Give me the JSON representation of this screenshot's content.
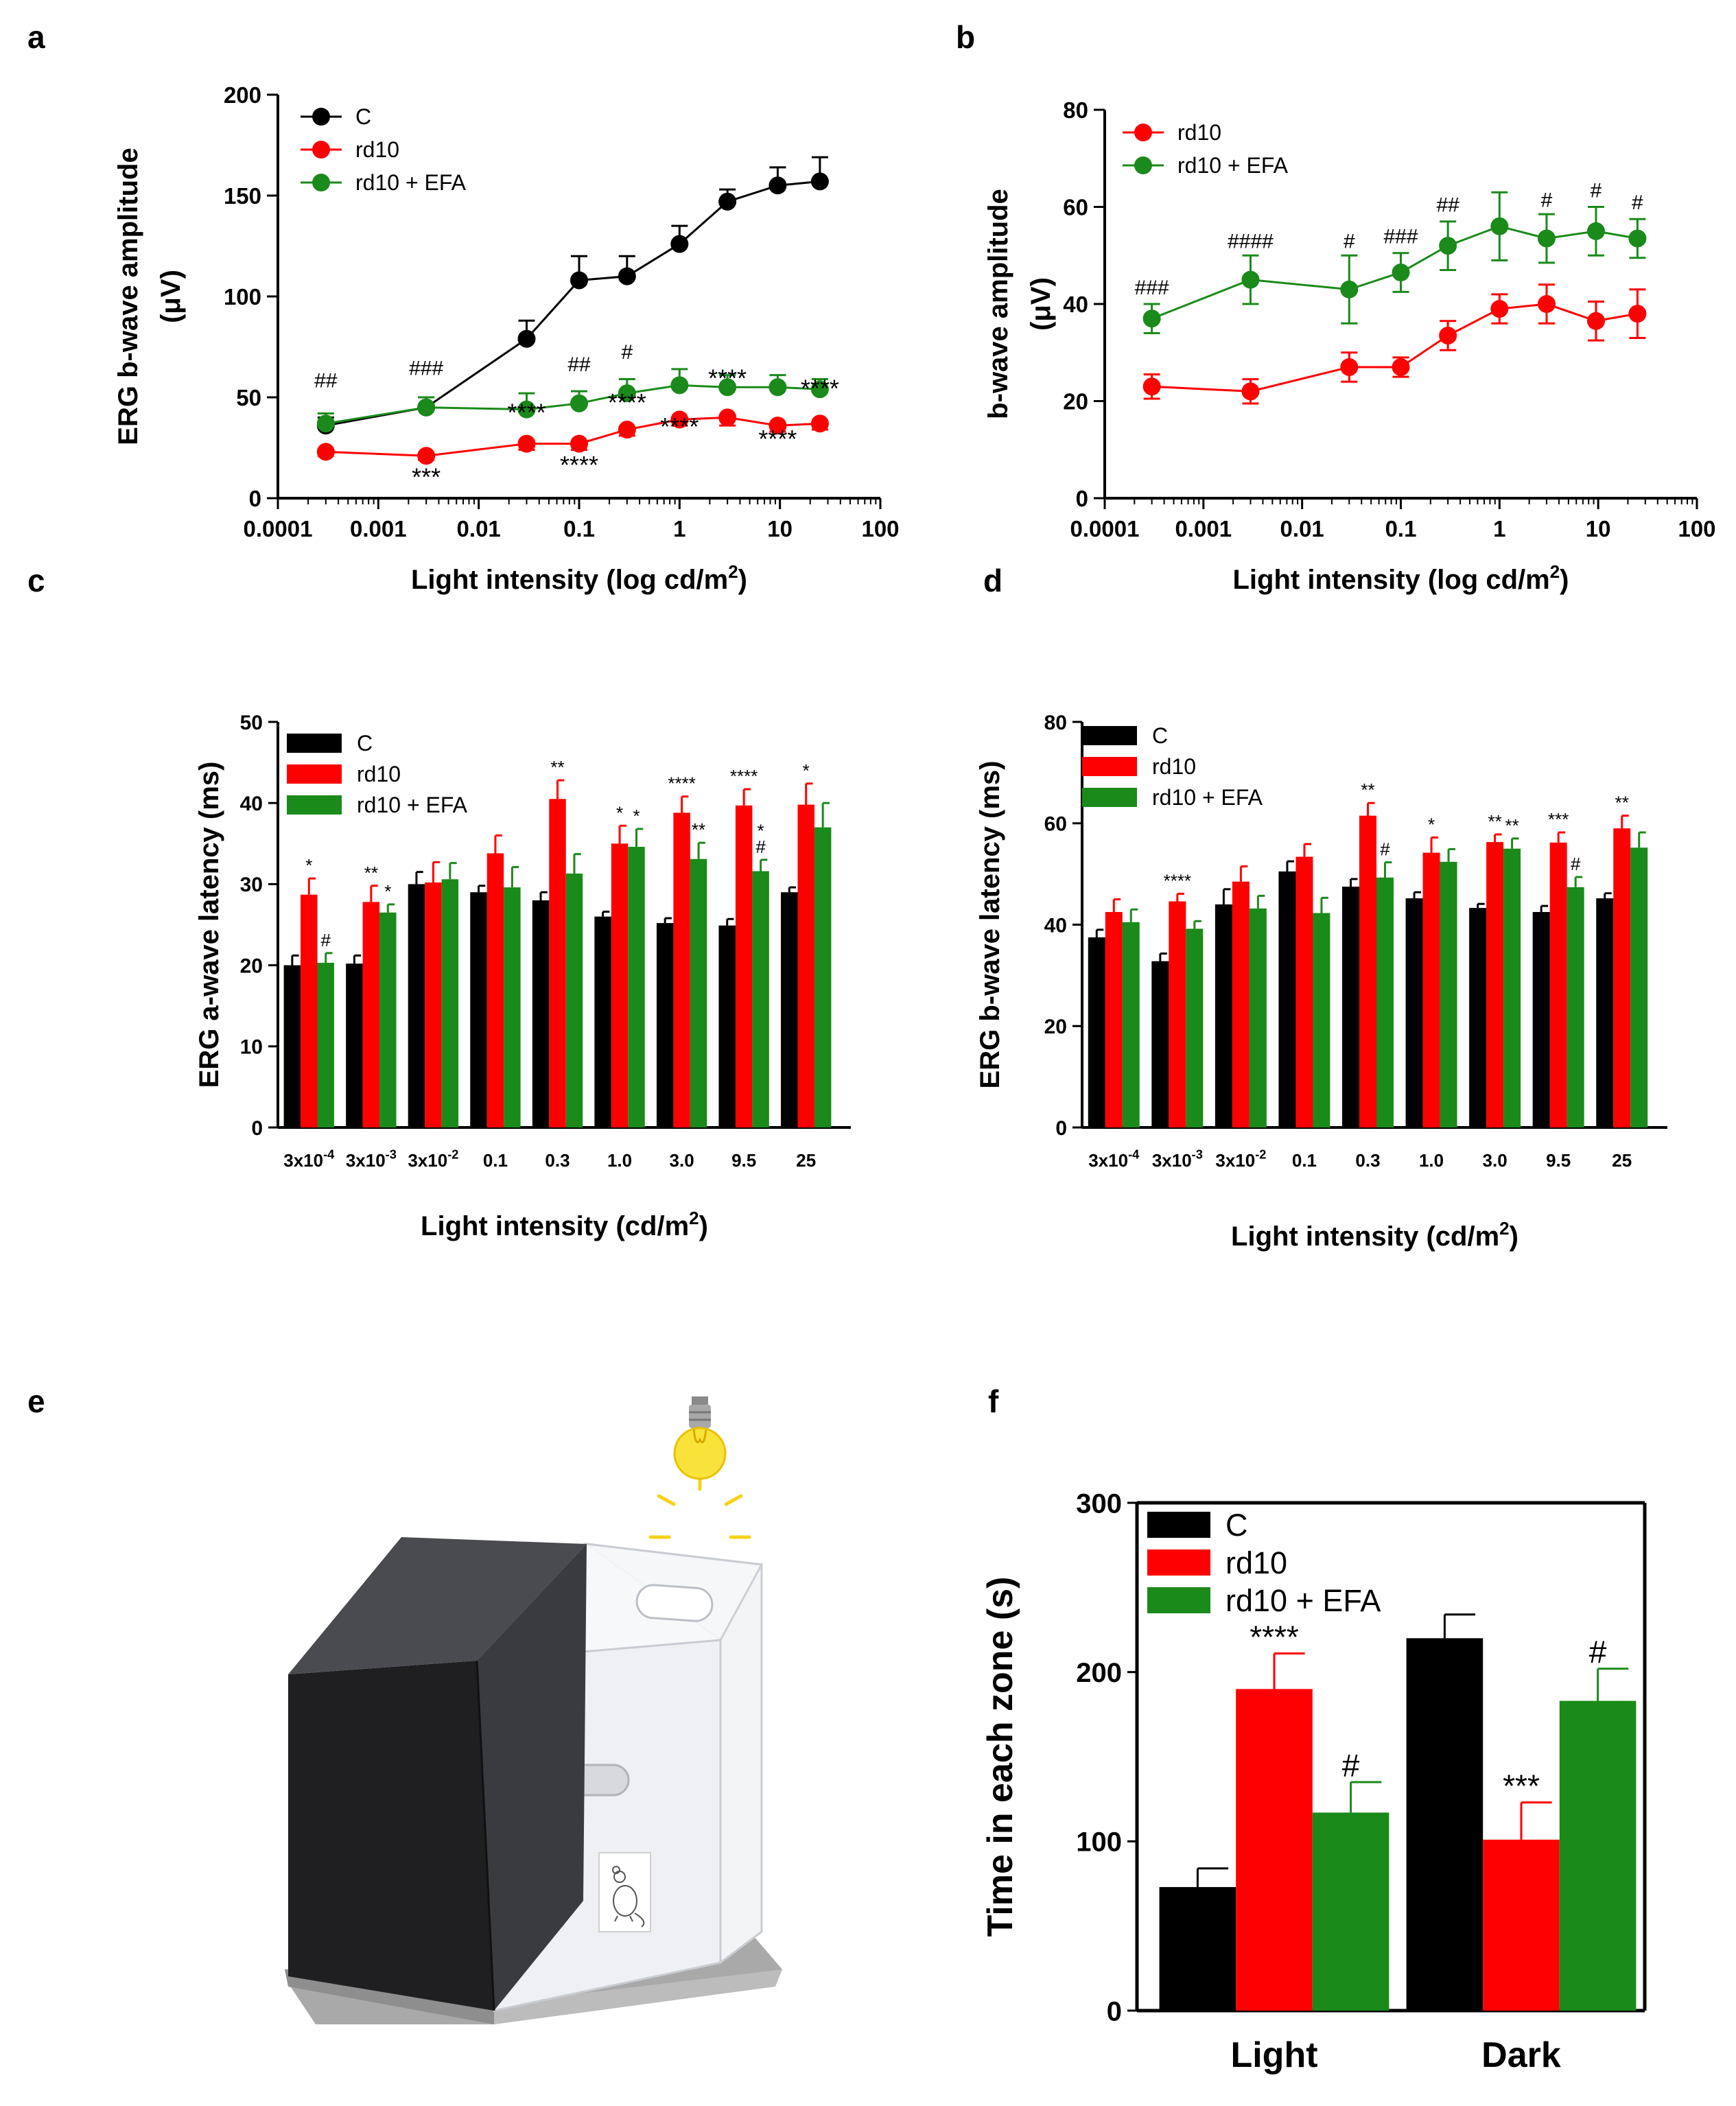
{
  "figure": {
    "panel_labels": [
      "a",
      "b",
      "c",
      "d",
      "e",
      "f"
    ]
  },
  "colors": {
    "C": "#000000",
    "rd10": "#ff0000",
    "EFA": "#1a8a1a"
  },
  "chart_data": [
    {
      "panel": "a",
      "type": "line",
      "xscale": "log",
      "xlabel": "Light intensity (log cd/m",
      "xlabel_sup": "2",
      "xlabel_close": ")",
      "ylabel_line1": "ERG b-wave amplitude",
      "ylabel_line2": "(μV)",
      "xticks": [
        "0.0001",
        "0.001",
        "0.01",
        "0.1",
        "1",
        "10",
        "100"
      ],
      "xtick_values": [
        0.0001,
        0.001,
        0.01,
        0.1,
        1,
        10,
        100
      ],
      "yticks": [
        "0",
        "50",
        "100",
        "150",
        "200"
      ],
      "ylim": [
        0,
        200
      ],
      "x": [
        0.0003,
        0.003,
        0.03,
        0.1,
        0.3,
        1,
        3,
        9.5,
        25
      ],
      "legend": [
        "C",
        "rd10",
        "rd10 + EFA"
      ],
      "series": [
        {
          "name": "C",
          "color": "#000000",
          "errdir": 1,
          "values": [
            36,
            45,
            79,
            108,
            110,
            126,
            147,
            155,
            157
          ],
          "errors": [
            4,
            5,
            9,
            12,
            10,
            9,
            6,
            9,
            12
          ]
        },
        {
          "name": "rd10",
          "color": "#ff0000",
          "errdir": -1,
          "values": [
            23,
            21,
            27,
            27,
            34,
            39,
            40,
            36,
            37
          ],
          "errors": [
            2,
            2,
            3,
            3,
            3,
            3,
            4,
            3,
            3
          ]
        },
        {
          "name": "rd10 + EFA",
          "color": "#1a8a1a",
          "errdir": 1,
          "values": [
            37,
            45,
            44,
            47,
            52,
            56,
            55,
            55,
            54
          ],
          "errors": [
            5,
            5,
            8,
            6,
            7,
            8,
            6,
            6,
            5
          ]
        }
      ],
      "annotations_hash": [
        {
          "x": 0.0003,
          "y": 55,
          "text": "##"
        },
        {
          "x": 0.003,
          "y": 61,
          "text": "###"
        },
        {
          "x": 0.1,
          "y": 63,
          "text": "##"
        },
        {
          "x": 0.3,
          "y": 69,
          "text": "#"
        }
      ],
      "annotations_star": [
        {
          "x": 0.003,
          "y": 11,
          "text": "***"
        },
        {
          "x": 0.03,
          "y": 43,
          "text": "****"
        },
        {
          "x": 0.1,
          "y": 17,
          "text": "****"
        },
        {
          "x": 0.3,
          "y": 48,
          "text": "****"
        },
        {
          "x": 1,
          "y": 36,
          "text": "****"
        },
        {
          "x": 3,
          "y": 60,
          "text": "****"
        },
        {
          "x": 9.5,
          "y": 30,
          "text": "****"
        },
        {
          "x": 25,
          "y": 55,
          "text": "****"
        }
      ]
    },
    {
      "panel": "b",
      "type": "line",
      "xscale": "log",
      "xlabel": "Light intensity (log cd/m",
      "xlabel_sup": "2",
      "xlabel_close": ")",
      "ylabel_line1": "b-wave amplitude",
      "ylabel_line2": "(μV)",
      "xticks": [
        "0.0001",
        "0.001",
        "0.01",
        "0.1",
        "1",
        "10",
        "100"
      ],
      "xtick_values": [
        0.0001,
        0.001,
        0.01,
        0.1,
        1,
        10,
        100
      ],
      "yticks": [
        "0",
        "20",
        "40",
        "60",
        "80"
      ],
      "ylim": [
        0,
        80
      ],
      "x": [
        0.0003,
        0.003,
        0.03,
        0.1,
        0.3,
        1,
        3,
        9.5,
        25
      ],
      "legend": [
        "rd10",
        "rd10 + EFA"
      ],
      "series": [
        {
          "name": "rd10",
          "color": "#ff0000",
          "errdir": 0,
          "values": [
            23,
            22,
            27,
            27,
            33.5,
            39,
            40,
            36.5,
            38
          ],
          "errors": [
            2.5,
            2.5,
            3,
            2,
            3,
            3,
            4,
            4,
            5
          ]
        },
        {
          "name": "rd10 + EFA",
          "color": "#1a8a1a",
          "errdir": 0,
          "values": [
            37,
            45,
            43,
            46.5,
            52,
            56,
            53.5,
            55,
            53.5
          ],
          "errors": [
            3,
            5,
            7,
            4,
            5,
            7,
            5,
            5,
            4
          ]
        }
      ],
      "annotations_hash": [
        {
          "x": 0.0003,
          "y": 42,
          "text": "###"
        },
        {
          "x": 0.003,
          "y": 51.5,
          "text": "####"
        },
        {
          "x": 0.03,
          "y": 51.5,
          "text": "#"
        },
        {
          "x": 0.1,
          "y": 52.5,
          "text": "###"
        },
        {
          "x": 0.3,
          "y": 59,
          "text": "##"
        },
        {
          "x": 3,
          "y": 60,
          "text": "#"
        },
        {
          "x": 9.5,
          "y": 62,
          "text": "#"
        },
        {
          "x": 25,
          "y": 59.5,
          "text": "#"
        }
      ]
    },
    {
      "panel": "c",
      "type": "bar",
      "xlabel": "Light intensity (cd/m",
      "xlabel_sup": "2",
      "xlabel_close": ")",
      "ylabel": "ERG a-wave latency (ms)",
      "categories": [
        {
          "base": "3x10",
          "sup": "-4"
        },
        {
          "base": "3x10",
          "sup": "-3"
        },
        {
          "base": "3x10",
          "sup": "-2"
        },
        {
          "base": "0.1",
          "sup": ""
        },
        {
          "base": "0.3",
          "sup": ""
        },
        {
          "base": "1.0",
          "sup": ""
        },
        {
          "base": "3.0",
          "sup": ""
        },
        {
          "base": "9.5",
          "sup": ""
        },
        {
          "base": "25",
          "sup": ""
        }
      ],
      "yticks": [
        "0",
        "10",
        "20",
        "30",
        "40",
        "50"
      ],
      "ylim": [
        0,
        50
      ],
      "legend": [
        "C",
        "rd10",
        "rd10 + EFA"
      ],
      "series": [
        {
          "name": "C",
          "color": "#000000",
          "values": [
            20,
            20.2,
            30,
            29,
            28,
            26,
            25.2,
            24.9,
            29
          ],
          "errors": [
            1.2,
            1,
            1.5,
            0.8,
            1,
            0.6,
            0.6,
            0.8,
            0.6
          ]
        },
        {
          "name": "rd10",
          "color": "#ff0000",
          "values": [
            28.7,
            27.8,
            30.2,
            33.8,
            40.5,
            35,
            38.8,
            39.7,
            39.8
          ],
          "errors": [
            2,
            2,
            2.5,
            2.2,
            2.3,
            2.2,
            2,
            2,
            2.6
          ]
        },
        {
          "name": "rd10 + EFA",
          "color": "#1a8a1a",
          "values": [
            20.3,
            26.5,
            30.6,
            29.6,
            31.3,
            34.6,
            33.1,
            31.6,
            37
          ],
          "errors": [
            1.2,
            1,
            2,
            2.5,
            2.4,
            2.2,
            2,
            1.4,
            3
          ]
        }
      ],
      "annotations": [
        {
          "group": 0,
          "bar": 1,
          "text": "*"
        },
        {
          "group": 0,
          "bar": 2,
          "text": "#"
        },
        {
          "group": 1,
          "bar": 1,
          "text": "**"
        },
        {
          "group": 1,
          "bar": 2,
          "text": "*"
        },
        {
          "group": 4,
          "bar": 1,
          "text": "**"
        },
        {
          "group": 5,
          "bar": 1,
          "text": "*"
        },
        {
          "group": 5,
          "bar": 2,
          "text": "*"
        },
        {
          "group": 6,
          "bar": 1,
          "text": "****"
        },
        {
          "group": 6,
          "bar": 2,
          "text": "**"
        },
        {
          "group": 7,
          "bar": 1,
          "text": "****"
        },
        {
          "group": 7,
          "bar": 2,
          "text": "#"
        },
        {
          "group": 7,
          "bar": 2,
          "text": "*"
        },
        {
          "group": 8,
          "bar": 1,
          "text": "*"
        }
      ]
    },
    {
      "panel": "d",
      "type": "bar",
      "xlabel": "Light intensity (cd/m",
      "xlabel_sup": "2",
      "xlabel_close": ")",
      "ylabel": "ERG b-wave latency (ms)",
      "categories": [
        {
          "base": "3x10",
          "sup": "-4"
        },
        {
          "base": "3x10",
          "sup": "-3"
        },
        {
          "base": "3x10",
          "sup": "-2"
        },
        {
          "base": "0.1",
          "sup": ""
        },
        {
          "base": "0.3",
          "sup": ""
        },
        {
          "base": "1.0",
          "sup": ""
        },
        {
          "base": "3.0",
          "sup": ""
        },
        {
          "base": "9.5",
          "sup": ""
        },
        {
          "base": "25",
          "sup": ""
        }
      ],
      "yticks": [
        "0",
        "20",
        "40",
        "60",
        "80"
      ],
      "ylim": [
        0,
        80
      ],
      "legend": [
        "C",
        "rd10",
        "rd10 + EFA"
      ],
      "series": [
        {
          "name": "C",
          "color": "#000000",
          "values": [
            37.5,
            32.8,
            44,
            50.5,
            47.5,
            45.2,
            43.3,
            42.5,
            45.2
          ],
          "errors": [
            1.5,
            1.5,
            3,
            2,
            1.5,
            1.2,
            0.8,
            1.2,
            1
          ]
        },
        {
          "name": "rd10",
          "color": "#ff0000",
          "values": [
            42.5,
            44.6,
            48.5,
            53.4,
            61.5,
            54.2,
            56.3,
            56.2,
            59
          ],
          "errors": [
            2.5,
            1.5,
            3,
            2.5,
            2.5,
            3,
            1.5,
            2,
            2.5
          ]
        },
        {
          "name": "rd10 + EFA",
          "color": "#1a8a1a",
          "values": [
            40.5,
            39.2,
            43.2,
            42.3,
            49.3,
            52.4,
            55,
            47.4,
            55.2
          ],
          "errors": [
            2.5,
            1.5,
            2.5,
            3,
            3,
            2.5,
            2,
            2,
            3
          ]
        }
      ],
      "annotations": [
        {
          "group": 1,
          "bar": 1,
          "text": "****"
        },
        {
          "group": 4,
          "bar": 1,
          "text": "**"
        },
        {
          "group": 4,
          "bar": 2,
          "text": "#"
        },
        {
          "group": 5,
          "bar": 1,
          "text": "*"
        },
        {
          "group": 6,
          "bar": 1,
          "text": "**"
        },
        {
          "group": 6,
          "bar": 2,
          "text": "**"
        },
        {
          "group": 7,
          "bar": 1,
          "text": "***"
        },
        {
          "group": 7,
          "bar": 2,
          "text": "#"
        },
        {
          "group": 8,
          "bar": 1,
          "text": "**"
        }
      ]
    },
    {
      "panel": "f",
      "type": "bar",
      "ylabel": "Time in each zone (s)",
      "categories": [
        {
          "base": "Light",
          "sup": ""
        },
        {
          "base": "Dark",
          "sup": ""
        }
      ],
      "yticks": [
        "0",
        "100",
        "200",
        "300"
      ],
      "ylim": [
        0,
        300
      ],
      "legend": [
        "C",
        "rd10",
        "rd10 + EFA"
      ],
      "series": [
        {
          "name": "C",
          "color": "#000000",
          "values": [
            73,
            220
          ],
          "errors": [
            11,
            14
          ]
        },
        {
          "name": "rd10",
          "color": "#ff0000",
          "values": [
            190,
            101
          ],
          "errors": [
            21,
            22
          ]
        },
        {
          "name": "rd10 + EFA",
          "color": "#1a8a1a",
          "values": [
            117,
            183
          ],
          "errors": [
            18,
            19
          ]
        }
      ],
      "annotations": [
        {
          "group": 0,
          "bar": 1,
          "text": "****"
        },
        {
          "group": 0,
          "bar": 2,
          "text": "#"
        },
        {
          "group": 1,
          "bar": 1,
          "text": "***"
        },
        {
          "group": 1,
          "bar": 2,
          "text": "#"
        }
      ]
    }
  ]
}
